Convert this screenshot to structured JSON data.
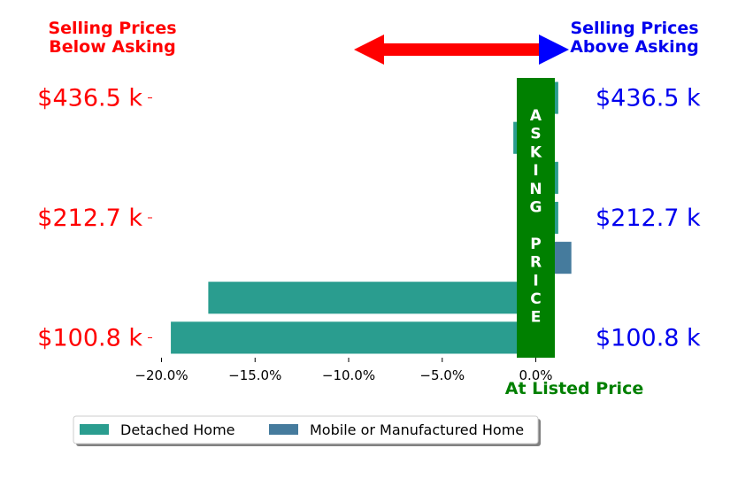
{
  "chart_data": {
    "type": "bar",
    "orientation": "horizontal",
    "categories": [
      "$100.8 k",
      "",
      "",
      "$212.7 k",
      "",
      "",
      "$436.5 k"
    ],
    "left_tick_labels": [
      "$100.8 k",
      "$212.7 k",
      "$436.5 k"
    ],
    "right_tick_labels": [
      "$100.8 k",
      "$212.7 k",
      "$436.5 k"
    ],
    "xticks": [
      -20,
      -15,
      -10,
      -5,
      0
    ],
    "xtick_labels": [
      "−20.0%",
      "−15.0%",
      "−10.0%",
      "−5.0%",
      "0.0%"
    ],
    "xlim": [
      -20.0,
      2.0
    ],
    "series": [
      {
        "name": "Detached Home",
        "color": "#2a9d8f",
        "values": [
          -19.5,
          -17.5,
          null,
          1.2,
          1.2,
          -1.2,
          1.2
        ]
      },
      {
        "name": "Mobile or Manufactured Home",
        "color": "#457b9d",
        "values": [
          null,
          null,
          1.9,
          null,
          null,
          null,
          null
        ]
      }
    ],
    "left_title": "Selling Prices\nBelow Asking",
    "right_title": "Selling Prices\nAbove Asking",
    "asking_band_text": "ASKING PRICE",
    "xlabel": "At Listed Price",
    "colors": {
      "below": "#ff0000",
      "above": "#0000ee",
      "asking": "#008000",
      "arrow": "#ff0000",
      "arrow_right_head": "#0000ff"
    },
    "legend": {
      "placement": "bottom-left",
      "entries": [
        "Detached Home",
        "Mobile or Manufactured Home"
      ]
    },
    "grid": false
  }
}
